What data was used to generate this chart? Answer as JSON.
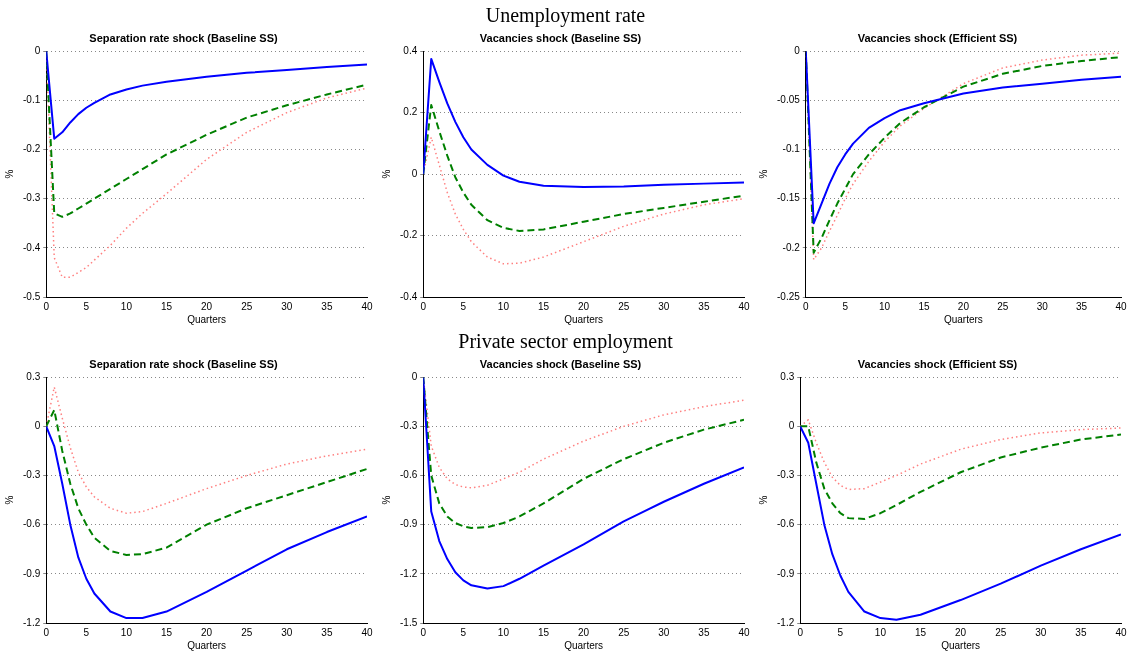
{
  "chart_data": [
    {
      "type": "line",
      "subtitle": "Separation rate shock (Baseline SS)",
      "xlabel": "Quarters",
      "ylabel": "%",
      "xlim": [
        0,
        40
      ],
      "xticks": [
        0,
        5,
        10,
        15,
        20,
        25,
        30,
        35,
        40
      ],
      "ylim": [
        -0.5,
        0
      ],
      "yticks": [
        -0.5,
        -0.4,
        -0.3,
        -0.2,
        -0.1,
        0
      ],
      "grid": "y",
      "legend": false,
      "marker": "none",
      "x": [
        0,
        1,
        2,
        3,
        4,
        5,
        6,
        8,
        10,
        12,
        15,
        20,
        25,
        30,
        35,
        40
      ],
      "series": [
        {
          "color": "#0000ff",
          "line_style": "solid",
          "values": [
            0,
            -0.178,
            -0.165,
            -0.145,
            -0.128,
            -0.115,
            -0.105,
            -0.088,
            -0.078,
            -0.07,
            -0.062,
            -0.052,
            -0.044,
            -0.038,
            -0.032,
            -0.027
          ]
        },
        {
          "color": "#008000",
          "line_style": "dashed",
          "values": [
            0,
            -0.33,
            -0.337,
            -0.33,
            -0.32,
            -0.31,
            -0.3,
            -0.28,
            -0.26,
            -0.24,
            -0.21,
            -0.17,
            -0.135,
            -0.11,
            -0.088,
            -0.068
          ]
        },
        {
          "color": "#ff8080",
          "line_style": "dotted",
          "values": [
            0,
            -0.42,
            -0.46,
            -0.46,
            -0.45,
            -0.44,
            -0.425,
            -0.395,
            -0.36,
            -0.33,
            -0.29,
            -0.22,
            -0.165,
            -0.125,
            -0.095,
            -0.075
          ]
        }
      ]
    },
    {
      "type": "line",
      "title": "Unemployment rate",
      "subtitle": "Vacancies shock (Baseline SS)",
      "xlabel": "Quarters",
      "ylabel": "%",
      "xlim": [
        0,
        40
      ],
      "xticks": [
        0,
        5,
        10,
        15,
        20,
        25,
        30,
        35,
        40
      ],
      "ylim": [
        -0.4,
        0.4
      ],
      "yticks": [
        -0.4,
        -0.2,
        0,
        0.2,
        0.4
      ],
      "grid": "y",
      "legend": false,
      "marker": "none",
      "x": [
        0,
        1,
        2,
        3,
        4,
        5,
        6,
        8,
        10,
        12,
        15,
        20,
        25,
        30,
        35,
        40
      ],
      "series": [
        {
          "color": "#0000ff",
          "line_style": "solid",
          "values": [
            0,
            0.375,
            0.3,
            0.23,
            0.17,
            0.12,
            0.08,
            0.03,
            -0.005,
            -0.025,
            -0.038,
            -0.042,
            -0.04,
            -0.035,
            -0.031,
            -0.027
          ]
        },
        {
          "color": "#008000",
          "line_style": "dashed",
          "values": [
            0,
            0.225,
            0.14,
            0.06,
            -0.01,
            -0.06,
            -0.1,
            -0.15,
            -0.175,
            -0.185,
            -0.18,
            -0.155,
            -0.13,
            -0.11,
            -0.09,
            -0.07
          ]
        },
        {
          "color": "#ff8080",
          "line_style": "dotted",
          "values": [
            0,
            0.12,
            0.03,
            -0.06,
            -0.13,
            -0.18,
            -0.22,
            -0.27,
            -0.292,
            -0.29,
            -0.27,
            -0.22,
            -0.17,
            -0.13,
            -0.1,
            -0.08
          ]
        }
      ]
    },
    {
      "type": "line",
      "subtitle": "Vacancies shock (Efficient SS)",
      "xlabel": "Quarters",
      "ylabel": "%",
      "xlim": [
        0,
        40
      ],
      "xticks": [
        0,
        5,
        10,
        15,
        20,
        25,
        30,
        35,
        40
      ],
      "ylim": [
        -0.25,
        0
      ],
      "yticks": [
        -0.25,
        -0.2,
        -0.15,
        -0.1,
        -0.05,
        0
      ],
      "grid": "y",
      "legend": false,
      "marker": "none",
      "x": [
        0,
        1,
        2,
        3,
        4,
        5,
        6,
        8,
        10,
        12,
        15,
        20,
        25,
        30,
        35,
        40
      ],
      "series": [
        {
          "color": "#0000ff",
          "line_style": "solid",
          "values": [
            0,
            -0.175,
            -0.155,
            -0.135,
            -0.118,
            -0.105,
            -0.094,
            -0.078,
            -0.068,
            -0.06,
            -0.053,
            -0.043,
            -0.037,
            -0.033,
            -0.029,
            -0.026
          ]
        },
        {
          "color": "#008000",
          "line_style": "dashed",
          "values": [
            0,
            -0.205,
            -0.19,
            -0.172,
            -0.155,
            -0.14,
            -0.125,
            -0.105,
            -0.088,
            -0.073,
            -0.057,
            -0.036,
            -0.023,
            -0.015,
            -0.01,
            -0.006
          ]
        },
        {
          "color": "#ff8080",
          "line_style": "dotted",
          "values": [
            0,
            -0.212,
            -0.2,
            -0.183,
            -0.167,
            -0.15,
            -0.135,
            -0.112,
            -0.092,
            -0.076,
            -0.058,
            -0.033,
            -0.017,
            -0.009,
            -0.004,
            -0.002
          ]
        }
      ]
    },
    {
      "type": "line",
      "subtitle": "Separation rate shock (Baseline SS)",
      "xlabel": "Quarters",
      "ylabel": "%",
      "xlim": [
        0,
        40
      ],
      "xticks": [
        0,
        5,
        10,
        15,
        20,
        25,
        30,
        35,
        40
      ],
      "ylim": [
        -1.2,
        0.3
      ],
      "yticks": [
        -1.2,
        -0.9,
        -0.6,
        -0.3,
        0,
        0.3
      ],
      "grid": "y",
      "legend": false,
      "marker": "none",
      "x": [
        0,
        1,
        2,
        3,
        4,
        5,
        6,
        8,
        10,
        12,
        15,
        20,
        25,
        30,
        35,
        40
      ],
      "series": [
        {
          "color": "#0000ff",
          "line_style": "solid",
          "values": [
            0,
            -0.12,
            -0.35,
            -0.6,
            -0.8,
            -0.93,
            -1.02,
            -1.13,
            -1.17,
            -1.17,
            -1.13,
            -1.01,
            -0.88,
            -0.75,
            -0.645,
            -0.55
          ]
        },
        {
          "color": "#008000",
          "line_style": "dashed",
          "values": [
            0,
            0.1,
            -0.15,
            -0.35,
            -0.5,
            -0.6,
            -0.68,
            -0.76,
            -0.785,
            -0.78,
            -0.74,
            -0.6,
            -0.5,
            -0.42,
            -0.34,
            -0.26
          ]
        },
        {
          "color": "#ff8080",
          "line_style": "dotted",
          "values": [
            0,
            0.24,
            0.05,
            -0.13,
            -0.28,
            -0.37,
            -0.43,
            -0.5,
            -0.53,
            -0.52,
            -0.47,
            -0.38,
            -0.3,
            -0.23,
            -0.18,
            -0.14
          ]
        }
      ]
    },
    {
      "type": "line",
      "title": "Private sector employment",
      "subtitle": "Vacancies shock (Baseline SS)",
      "xlabel": "Quarters",
      "ylabel": "%",
      "xlim": [
        0,
        40
      ],
      "xticks": [
        0,
        5,
        10,
        15,
        20,
        25,
        30,
        35,
        40
      ],
      "ylim": [
        -1.5,
        0
      ],
      "yticks": [
        -1.5,
        -1.2,
        -0.9,
        -0.6,
        -0.3,
        0
      ],
      "grid": "y",
      "legend": false,
      "marker": "none",
      "x": [
        0,
        1,
        2,
        3,
        4,
        5,
        6,
        8,
        10,
        12,
        15,
        20,
        25,
        30,
        35,
        40
      ],
      "series": [
        {
          "color": "#0000ff",
          "line_style": "solid",
          "values": [
            0,
            -0.82,
            -1.0,
            -1.11,
            -1.19,
            -1.24,
            -1.27,
            -1.29,
            -1.275,
            -1.23,
            -1.15,
            -1.02,
            -0.88,
            -0.76,
            -0.65,
            -0.55
          ]
        },
        {
          "color": "#008000",
          "line_style": "dashed",
          "values": [
            0,
            -0.6,
            -0.77,
            -0.85,
            -0.89,
            -0.91,
            -0.92,
            -0.915,
            -0.89,
            -0.85,
            -0.77,
            -0.62,
            -0.5,
            -0.4,
            -0.32,
            -0.26
          ]
        },
        {
          "color": "#ff8080",
          "line_style": "dotted",
          "values": [
            0,
            -0.42,
            -0.55,
            -0.62,
            -0.655,
            -0.67,
            -0.675,
            -0.66,
            -0.62,
            -0.58,
            -0.5,
            -0.39,
            -0.3,
            -0.23,
            -0.18,
            -0.14
          ]
        }
      ]
    },
    {
      "type": "line",
      "subtitle": "Vacancies shock (Efficient SS)",
      "xlabel": "Quarters",
      "ylabel": "%",
      "xlim": [
        0,
        40
      ],
      "xticks": [
        0,
        5,
        10,
        15,
        20,
        25,
        30,
        35,
        40
      ],
      "ylim": [
        -1.2,
        0.3
      ],
      "yticks": [
        -1.2,
        -0.9,
        -0.6,
        -0.3,
        0,
        0.3
      ],
      "grid": "y",
      "legend": false,
      "marker": "none",
      "x": [
        0,
        1,
        2,
        3,
        4,
        5,
        6,
        8,
        10,
        12,
        15,
        20,
        25,
        30,
        35,
        40
      ],
      "series": [
        {
          "color": "#0000ff",
          "line_style": "solid",
          "values": [
            0,
            -0.1,
            -0.35,
            -0.6,
            -0.78,
            -0.91,
            -1.01,
            -1.13,
            -1.17,
            -1.18,
            -1.15,
            -1.06,
            -0.96,
            -0.85,
            -0.75,
            -0.66
          ]
        },
        {
          "color": "#008000",
          "line_style": "dashed",
          "values": [
            0,
            0,
            -0.22,
            -0.38,
            -0.47,
            -0.53,
            -0.56,
            -0.565,
            -0.53,
            -0.48,
            -0.4,
            -0.28,
            -0.19,
            -0.13,
            -0.08,
            -0.05
          ]
        },
        {
          "color": "#ff8080",
          "line_style": "dotted",
          "values": [
            0,
            0.04,
            -0.1,
            -0.22,
            -0.31,
            -0.36,
            -0.385,
            -0.38,
            -0.34,
            -0.3,
            -0.23,
            -0.14,
            -0.08,
            -0.04,
            -0.02,
            -0.01
          ]
        }
      ]
    }
  ]
}
